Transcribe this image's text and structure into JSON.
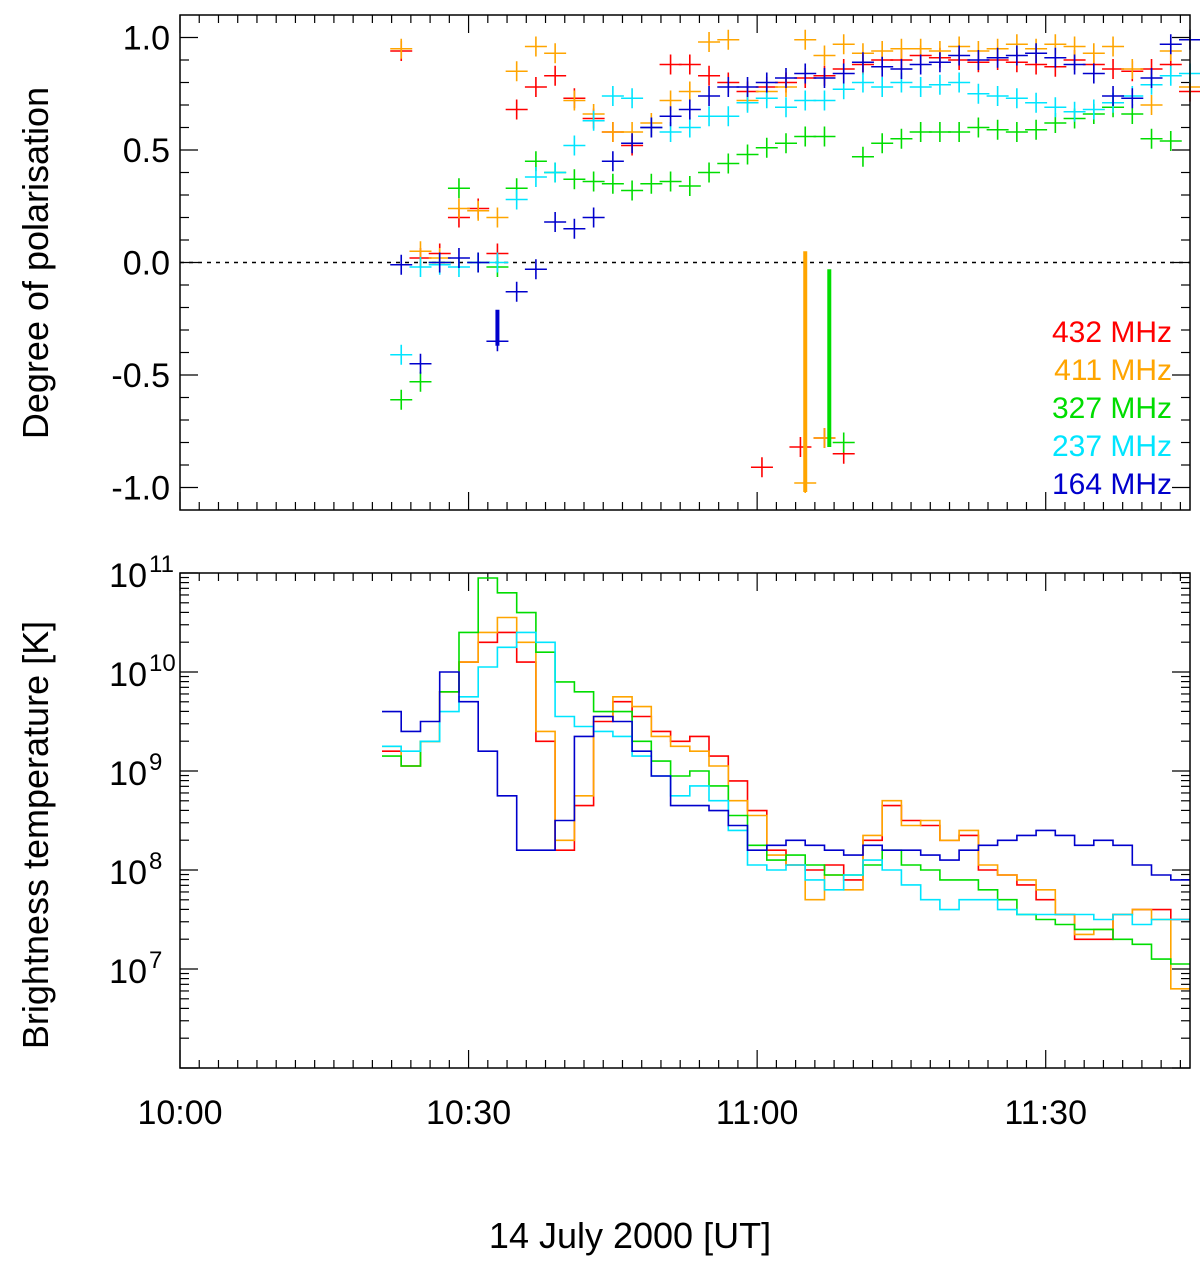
{
  "chart_data": [
    {
      "type": "scatter",
      "panel": "top",
      "ylabel": "Degree of polarisation",
      "ylim": [
        -1.1,
        1.1
      ],
      "yticks": [
        1.0,
        0.5,
        0.0,
        -0.5,
        -1.0
      ],
      "ytick_labels": [
        "1.0",
        "0.5",
        "0.0",
        "-0.5",
        "-1.0"
      ],
      "xlim": [
        0,
        105
      ],
      "reference_line": 0.0,
      "legend": {
        "placement": "bottom-right",
        "entries": [
          {
            "label": "432 MHz",
            "color": "#ff0000"
          },
          {
            "label": "411 MHz",
            "color": "#ffa500"
          },
          {
            "label": "327 MHz",
            "color": "#00dd00"
          },
          {
            "label": "237 MHz",
            "color": "#00e5ff"
          },
          {
            "label": "164 MHz",
            "color": "#0000cc"
          }
        ]
      },
      "series": [
        {
          "color": "#ff0000",
          "x": [
            23,
            25,
            27,
            29,
            31,
            33,
            35,
            37,
            39,
            41,
            43,
            45,
            47,
            49,
            51,
            53,
            55,
            57,
            59,
            61,
            63,
            65,
            67,
            69,
            71,
            73,
            75,
            77,
            79,
            81,
            83,
            85,
            87,
            89,
            91,
            93,
            95,
            97,
            99,
            101,
            103,
            105,
            60.5,
            64.5,
            67,
            69
          ],
          "y": [
            0.94,
            0.02,
            0.04,
            0.2,
            0.24,
            0.04,
            0.68,
            0.78,
            0.83,
            0.73,
            0.64,
            0.58,
            0.52,
            0.6,
            0.88,
            0.88,
            0.83,
            0.8,
            0.76,
            0.78,
            0.8,
            0.82,
            0.83,
            0.86,
            0.88,
            0.9,
            0.9,
            0.92,
            0.91,
            0.9,
            0.89,
            0.9,
            0.89,
            0.88,
            0.87,
            0.9,
            0.88,
            0.86,
            0.85,
            0.86,
            0.88,
            0.76,
            -0.91,
            -0.82,
            -0.78,
            -0.85
          ]
        },
        {
          "color": "#ffa500",
          "x": [
            23,
            25,
            27,
            29,
            31,
            33,
            35,
            37,
            39,
            41,
            43,
            45,
            47,
            49,
            51,
            53,
            55,
            57,
            59,
            61,
            63,
            65,
            67,
            69,
            71,
            73,
            75,
            77,
            79,
            81,
            83,
            85,
            87,
            89,
            91,
            93,
            95,
            97,
            99,
            101,
            103,
            105,
            65,
            67
          ],
          "y": [
            0.95,
            0.05,
            0.02,
            0.24,
            0.23,
            0.2,
            0.85,
            0.96,
            0.93,
            0.72,
            0.66,
            0.58,
            0.58,
            0.62,
            0.72,
            0.76,
            0.98,
            0.99,
            0.72,
            0.76,
            0.78,
            0.99,
            0.92,
            0.97,
            0.93,
            0.94,
            0.95,
            0.95,
            0.94,
            0.96,
            0.94,
            0.95,
            0.97,
            0.95,
            0.97,
            0.96,
            0.93,
            0.96,
            0.86,
            0.7,
            0.94,
            0.78,
            -0.98,
            -0.78
          ]
        },
        {
          "color": "#00dd00",
          "x": [
            23,
            25,
            27,
            29,
            31,
            33,
            35,
            37,
            39,
            41,
            43,
            45,
            47,
            49,
            51,
            53,
            55,
            57,
            59,
            61,
            63,
            65,
            67,
            69,
            71,
            73,
            75,
            77,
            79,
            81,
            83,
            85,
            87,
            89,
            91,
            93,
            95,
            97,
            99,
            101,
            103
          ],
          "y": [
            -0.61,
            -0.53,
            0.0,
            0.33,
            0.0,
            -0.02,
            0.33,
            0.45,
            0.4,
            0.37,
            0.36,
            0.35,
            0.32,
            0.35,
            0.36,
            0.34,
            0.4,
            0.44,
            0.48,
            0.51,
            0.53,
            0.56,
            0.56,
            -0.8,
            0.47,
            0.53,
            0.55,
            0.58,
            0.58,
            0.58,
            0.6,
            0.59,
            0.58,
            0.59,
            0.62,
            0.64,
            0.66,
            0.69,
            0.66,
            0.55,
            0.54
          ]
        },
        {
          "color": "#00e5ff",
          "x": [
            23,
            25,
            27,
            29,
            31,
            33,
            35,
            37,
            39,
            41,
            43,
            45,
            47,
            49,
            51,
            53,
            55,
            57,
            59,
            61,
            63,
            65,
            67,
            69,
            71,
            73,
            75,
            77,
            79,
            81,
            83,
            85,
            87,
            89,
            91,
            93,
            95,
            97,
            99,
            101,
            103,
            105
          ],
          "y": [
            -0.41,
            -0.02,
            -0.01,
            -0.02,
            0.0,
            0.0,
            0.28,
            0.38,
            0.4,
            0.52,
            0.63,
            0.74,
            0.73,
            0.6,
            0.58,
            0.6,
            0.65,
            0.65,
            0.71,
            0.73,
            0.69,
            0.72,
            0.72,
            0.77,
            0.8,
            0.78,
            0.8,
            0.78,
            0.79,
            0.8,
            0.75,
            0.74,
            0.73,
            0.71,
            0.69,
            0.67,
            0.68,
            0.71,
            0.74,
            0.79,
            0.83,
            0.84
          ]
        },
        {
          "color": "#0000cc",
          "x": [
            23,
            25,
            27,
            29,
            31,
            33,
            35,
            37,
            39,
            41,
            43,
            45,
            47,
            49,
            51,
            53,
            55,
            57,
            59,
            61,
            63,
            65,
            67,
            69,
            71,
            73,
            75,
            77,
            79,
            81,
            83,
            85,
            87,
            89,
            91,
            93,
            95,
            97,
            99,
            101,
            103,
            105
          ],
          "y": [
            -0.01,
            -0.45,
            0.0,
            0.02,
            0.0,
            -0.35,
            -0.13,
            -0.03,
            0.18,
            0.15,
            0.2,
            0.45,
            0.53,
            0.6,
            0.65,
            0.68,
            0.74,
            0.78,
            0.78,
            0.8,
            0.82,
            0.84,
            0.82,
            0.84,
            0.89,
            0.87,
            0.86,
            0.88,
            0.89,
            0.92,
            0.9,
            0.91,
            0.92,
            0.93,
            0.91,
            0.88,
            0.84,
            0.74,
            0.73,
            0.82,
            0.97,
            0.99
          ]
        }
      ],
      "error_bars": [
        {
          "color": "#ffa500",
          "x": 65.0,
          "y_low": -1.02,
          "y_high": 0.05
        },
        {
          "color": "#00dd00",
          "x": 67.5,
          "y_low": -0.82,
          "y_high": -0.03
        },
        {
          "color": "#0000cc",
          "x": 33.0,
          "y_low": -0.37,
          "y_high": -0.21
        }
      ]
    },
    {
      "type": "line",
      "panel": "bottom",
      "step": true,
      "ylabel": "Brightness temperature [K]",
      "yscale": "log",
      "ylim": [
        6.0,
        11.0
      ],
      "yticks": [
        7,
        8,
        9,
        10,
        11
      ],
      "ytick_base": "10",
      "xlabel": "14 July 2000 [UT]",
      "xlim": [
        0,
        105
      ],
      "xticks": [
        0,
        30,
        60,
        90
      ],
      "xtick_labels": [
        "10:00",
        "10:30",
        "11:00",
        "11:30"
      ],
      "x": [
        22,
        24,
        26,
        28,
        30,
        32,
        34,
        36,
        38,
        40,
        42,
        44,
        46,
        48,
        50,
        52,
        54,
        56,
        58,
        60,
        62,
        64,
        66,
        68,
        70,
        72,
        74,
        76,
        78,
        80,
        82,
        84,
        86,
        88,
        90,
        92,
        94,
        96,
        98,
        100,
        102,
        104
      ],
      "series": [
        {
          "color": "#ff0000",
          "values": [
            9.2,
            9.05,
            9.3,
            9.8,
            10.1,
            10.3,
            10.4,
            10.1,
            9.3,
            8.2,
            8.65,
            9.5,
            9.7,
            9.55,
            9.4,
            9.3,
            9.35,
            9.15,
            8.9,
            8.6,
            8.2,
            8.05,
            8.0,
            8.05,
            7.9,
            8.3,
            8.65,
            8.5,
            8.45,
            8.3,
            8.35,
            8.0,
            7.95,
            7.85,
            7.7,
            7.55,
            7.3,
            7.3,
            7.55,
            7.6,
            7.6,
            7.5
          ]
        },
        {
          "color": "#ffa500",
          "values": [
            9.25,
            9.05,
            9.3,
            9.8,
            10.1,
            10.4,
            10.55,
            10.3,
            9.4,
            8.3,
            8.75,
            9.55,
            9.75,
            9.65,
            9.35,
            9.25,
            9.2,
            9.05,
            8.7,
            8.55,
            8.15,
            8.05,
            7.7,
            7.95,
            7.8,
            8.35,
            8.7,
            8.45,
            8.5,
            8.3,
            8.4,
            8.05,
            7.95,
            7.9,
            7.8,
            7.55,
            7.35,
            7.4,
            7.55,
            7.6,
            7.5,
            6.8
          ]
        },
        {
          "color": "#00dd00",
          "values": [
            9.15,
            9.05,
            9.3,
            9.8,
            10.4,
            10.95,
            10.8,
            10.6,
            10.2,
            9.9,
            9.8,
            9.6,
            9.6,
            9.3,
            9.1,
            8.95,
            9.0,
            8.85,
            8.55,
            8.25,
            8.1,
            8.15,
            8.05,
            7.95,
            7.95,
            8.05,
            8.2,
            8.05,
            8.0,
            7.9,
            7.9,
            7.8,
            7.7,
            7.55,
            7.5,
            7.45,
            7.4,
            7.4,
            7.3,
            7.25,
            7.1,
            7.05
          ]
        },
        {
          "color": "#00e5ff",
          "values": [
            9.25,
            9.2,
            9.3,
            9.6,
            9.75,
            10.05,
            10.25,
            10.4,
            10.3,
            9.55,
            9.45,
            9.4,
            9.35,
            9.15,
            8.95,
            8.75,
            8.85,
            8.7,
            8.4,
            8.05,
            8.0,
            8.05,
            7.9,
            7.8,
            7.95,
            8.1,
            8.0,
            7.85,
            7.7,
            7.6,
            7.7,
            7.7,
            7.6,
            7.55,
            7.55,
            7.55,
            7.55,
            7.5,
            7.55,
            7.45,
            7.5,
            7.5
          ]
        },
        {
          "color": "#0000cc",
          "values": [
            9.6,
            9.4,
            9.5,
            10.0,
            9.7,
            9.2,
            8.75,
            8.2,
            8.2,
            8.5,
            9.35,
            9.55,
            9.5,
            9.2,
            8.95,
            8.65,
            8.65,
            8.6,
            8.45,
            8.2,
            8.25,
            8.3,
            8.25,
            8.2,
            8.15,
            8.25,
            8.2,
            8.2,
            8.15,
            8.1,
            8.2,
            8.25,
            8.3,
            8.35,
            8.4,
            8.35,
            8.25,
            8.3,
            8.25,
            8.05,
            7.95,
            7.9
          ]
        }
      ]
    }
  ]
}
